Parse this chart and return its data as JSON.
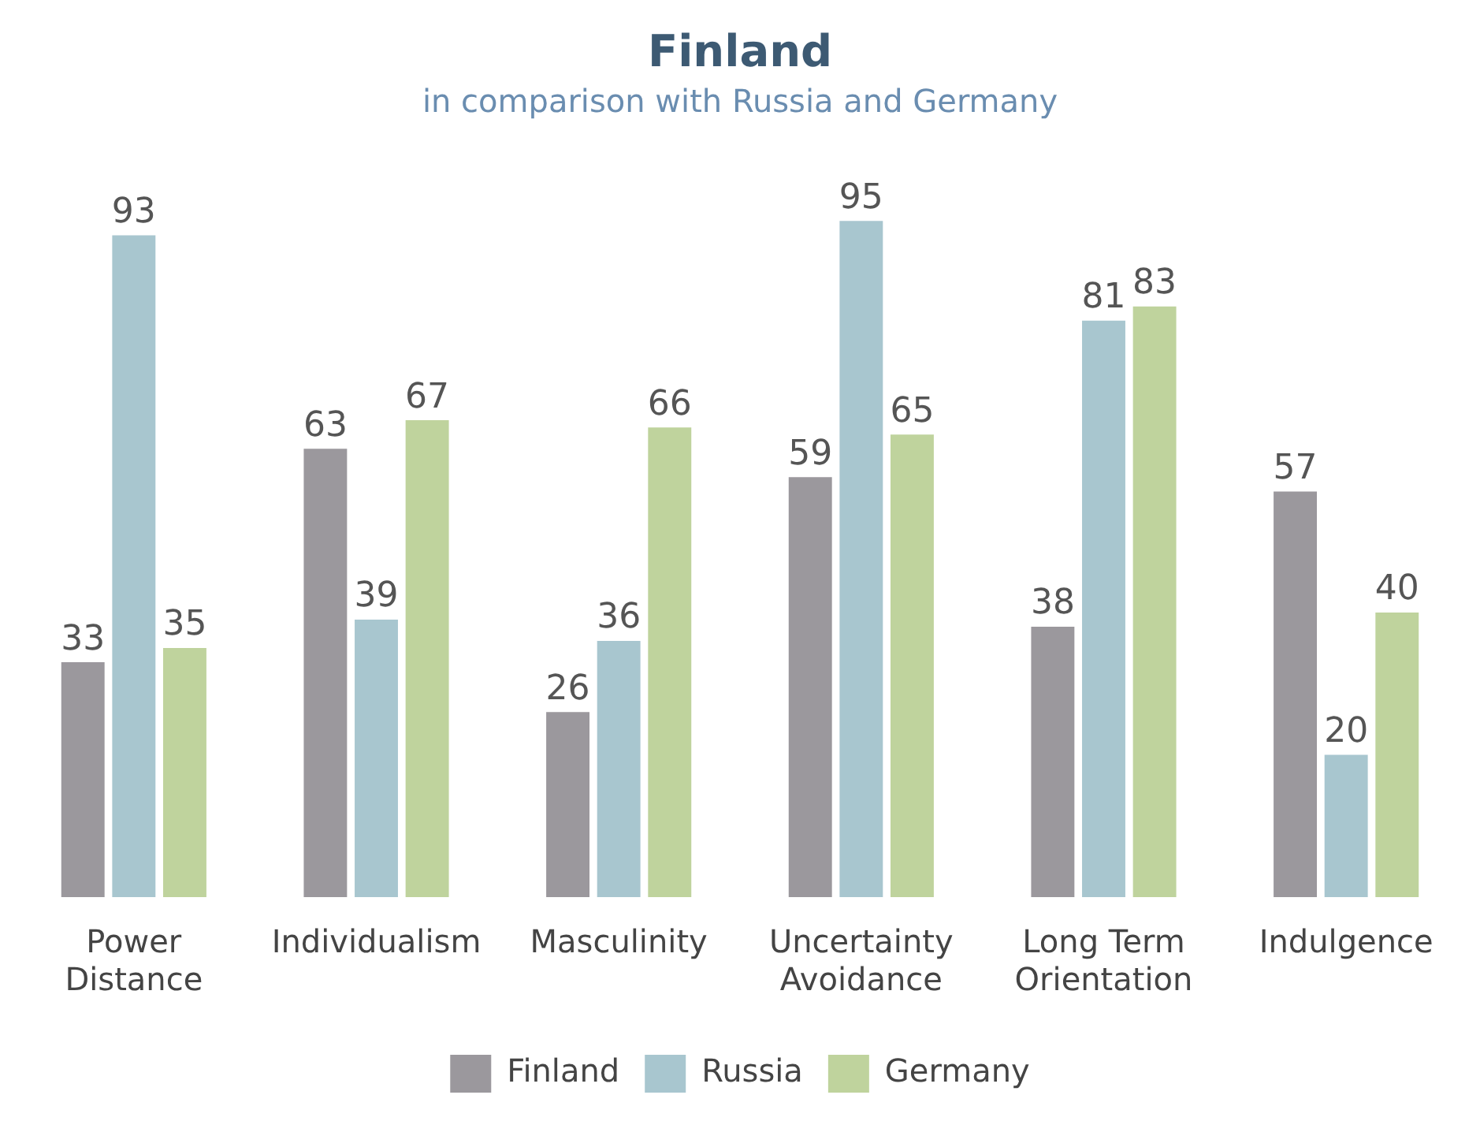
{
  "chart_data": {
    "type": "bar",
    "title": "Finland",
    "subtitle": "in comparison with Russia and Germany",
    "categories": [
      "Power Distance",
      "Individualism",
      "Masculinity",
      "Uncertainty Avoidance",
      "Long Term Orientation",
      "Indulgence"
    ],
    "series": [
      {
        "name": "Finland",
        "color": "#9b989d",
        "values": [
          33,
          63,
          26,
          59,
          38,
          57
        ]
      },
      {
        "name": "Russia",
        "color": "#a8c6cf",
        "values": [
          93,
          39,
          36,
          95,
          81,
          20
        ]
      },
      {
        "name": "Germany",
        "color": "#bfd39d",
        "values": [
          35,
          67,
          66,
          65,
          83,
          40
        ]
      }
    ],
    "data_labels": true,
    "grid": false,
    "legend": "bottom"
  }
}
